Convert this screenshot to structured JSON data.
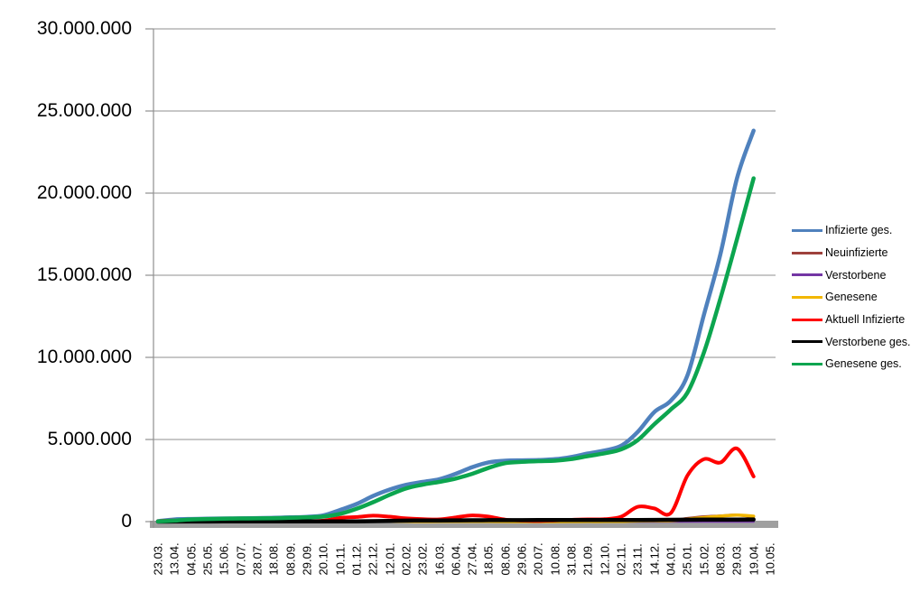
{
  "chart_data": {
    "type": "line",
    "title": "",
    "xlabel": "",
    "ylabel": "",
    "grid": true,
    "legend_position": "right",
    "ylim": [
      0,
      30000000
    ],
    "y_tick_labels": [
      "0",
      "5.000.000",
      "10.000.000",
      "15.000.000",
      "20.000.000",
      "25.000.000",
      "30.000.000"
    ],
    "categories": [
      "23.03.",
      "13.04.",
      "04.05.",
      "25.05.",
      "15.06.",
      "07.07.",
      "28.07.",
      "18.08.",
      "08.09.",
      "29.09.",
      "20.10.",
      "10.11.",
      "01.12.",
      "22.12.",
      "12.01.",
      "02.02.",
      "23.02.",
      "16.03.",
      "06.04.",
      "27.04.",
      "18.05.",
      "08.06.",
      "29.06.",
      "20.07.",
      "10.08.",
      "31.08.",
      "21.09.",
      "12.10.",
      "02.11.",
      "23.11.",
      "14.12.",
      "04.01.",
      "25.01.",
      "15.02.",
      "08.03.",
      "29.03.",
      "19.04.",
      "10.05."
    ],
    "series": [
      {
        "name": "Infizierte ges.",
        "color": "#4F81BD",
        "values": [
          30000,
          130000,
          160000,
          180000,
          190000,
          200000,
          215000,
          230000,
          260000,
          290000,
          380000,
          710000,
          1070000,
          1560000,
          1950000,
          2240000,
          2420000,
          2580000,
          2910000,
          3320000,
          3610000,
          3710000,
          3730000,
          3750000,
          3800000,
          3940000,
          4150000,
          4330000,
          4620000,
          5460000,
          6670000,
          7360000,
          8900000,
          12600000,
          16300000,
          20900000,
          23800000
        ]
      },
      {
        "name": "Neuinfizierte",
        "color": "#9E413C",
        "values": [
          5000,
          6000,
          2500,
          1200,
          900,
          800,
          900,
          1300,
          2000,
          3000,
          9000,
          19000,
          19000,
          25000,
          16000,
          9000,
          8000,
          12000,
          20000,
          18000,
          8000,
          3000,
          1500,
          1500,
          2500,
          10000,
          11000,
          10000,
          23000,
          60000,
          50000,
          60000,
          200000,
          300000,
          350000,
          400000,
          280000
        ]
      },
      {
        "name": "Verstorbene",
        "color": "#7436A4",
        "values": [
          300,
          900,
          400,
          150,
          80,
          40,
          30,
          30,
          40,
          60,
          150,
          500,
          800,
          950,
          800,
          500,
          250,
          200,
          250,
          280,
          230,
          100,
          40,
          25,
          30,
          60,
          70,
          80,
          120,
          200,
          300,
          280,
          250,
          200,
          250,
          300,
          250
        ]
      },
      {
        "name": "Genesene",
        "color": "#F2B700",
        "values": [
          2000,
          5000,
          4000,
          2000,
          1200,
          900,
          900,
          1100,
          1700,
          2400,
          6000,
          14000,
          17000,
          22000,
          18000,
          11000,
          8000,
          10000,
          17000,
          18000,
          11000,
          4000,
          2000,
          1500,
          2000,
          7000,
          9000,
          9500,
          18000,
          45000,
          55000,
          55000,
          150000,
          250000,
          330000,
          400000,
          330000
        ]
      },
      {
        "name": "Aktuell Infizierte",
        "color": "#FF0000",
        "values": [
          25000,
          65000,
          30000,
          15000,
          10000,
          7000,
          9000,
          15000,
          22000,
          28000,
          60000,
          230000,
          280000,
          360000,
          300000,
          200000,
          150000,
          140000,
          260000,
          380000,
          300000,
          120000,
          60000,
          40000,
          70000,
          110000,
          140000,
          150000,
          300000,
          900000,
          800000,
          520000,
          2800000,
          3800000,
          3600000,
          4450000,
          2750000
        ]
      },
      {
        "name": "Verstorbene ges.",
        "color": "#000000",
        "values": [
          500,
          3000,
          7000,
          8000,
          8800,
          9000,
          9100,
          9200,
          9300,
          9500,
          9900,
          11500,
          17000,
          27000,
          42000,
          59000,
          69000,
          74000,
          77000,
          82000,
          86000,
          89000,
          90000,
          91000,
          92000,
          92500,
          93000,
          94500,
          96000,
          100000,
          107000,
          112000,
          117000,
          120500,
          124000,
          128000,
          132000
        ]
      },
      {
        "name": "Genesene ges.",
        "color": "#0CA54F",
        "values": [
          10000,
          60000,
          130000,
          160000,
          180000,
          190000,
          200000,
          210000,
          230000,
          260000,
          310000,
          470000,
          780000,
          1180000,
          1630000,
          2020000,
          2250000,
          2420000,
          2620000,
          2910000,
          3280000,
          3560000,
          3640000,
          3680000,
          3710000,
          3810000,
          3990000,
          4160000,
          4400000,
          4960000,
          5930000,
          6830000,
          7850000,
          10300000,
          13600000,
          17200000,
          20900000
        ]
      }
    ],
    "axis_color": "#8F8F8F",
    "baseline_bar_color": "#A0A0A0",
    "note": "last category 10.05. has no data points; series end at 19.04."
  }
}
